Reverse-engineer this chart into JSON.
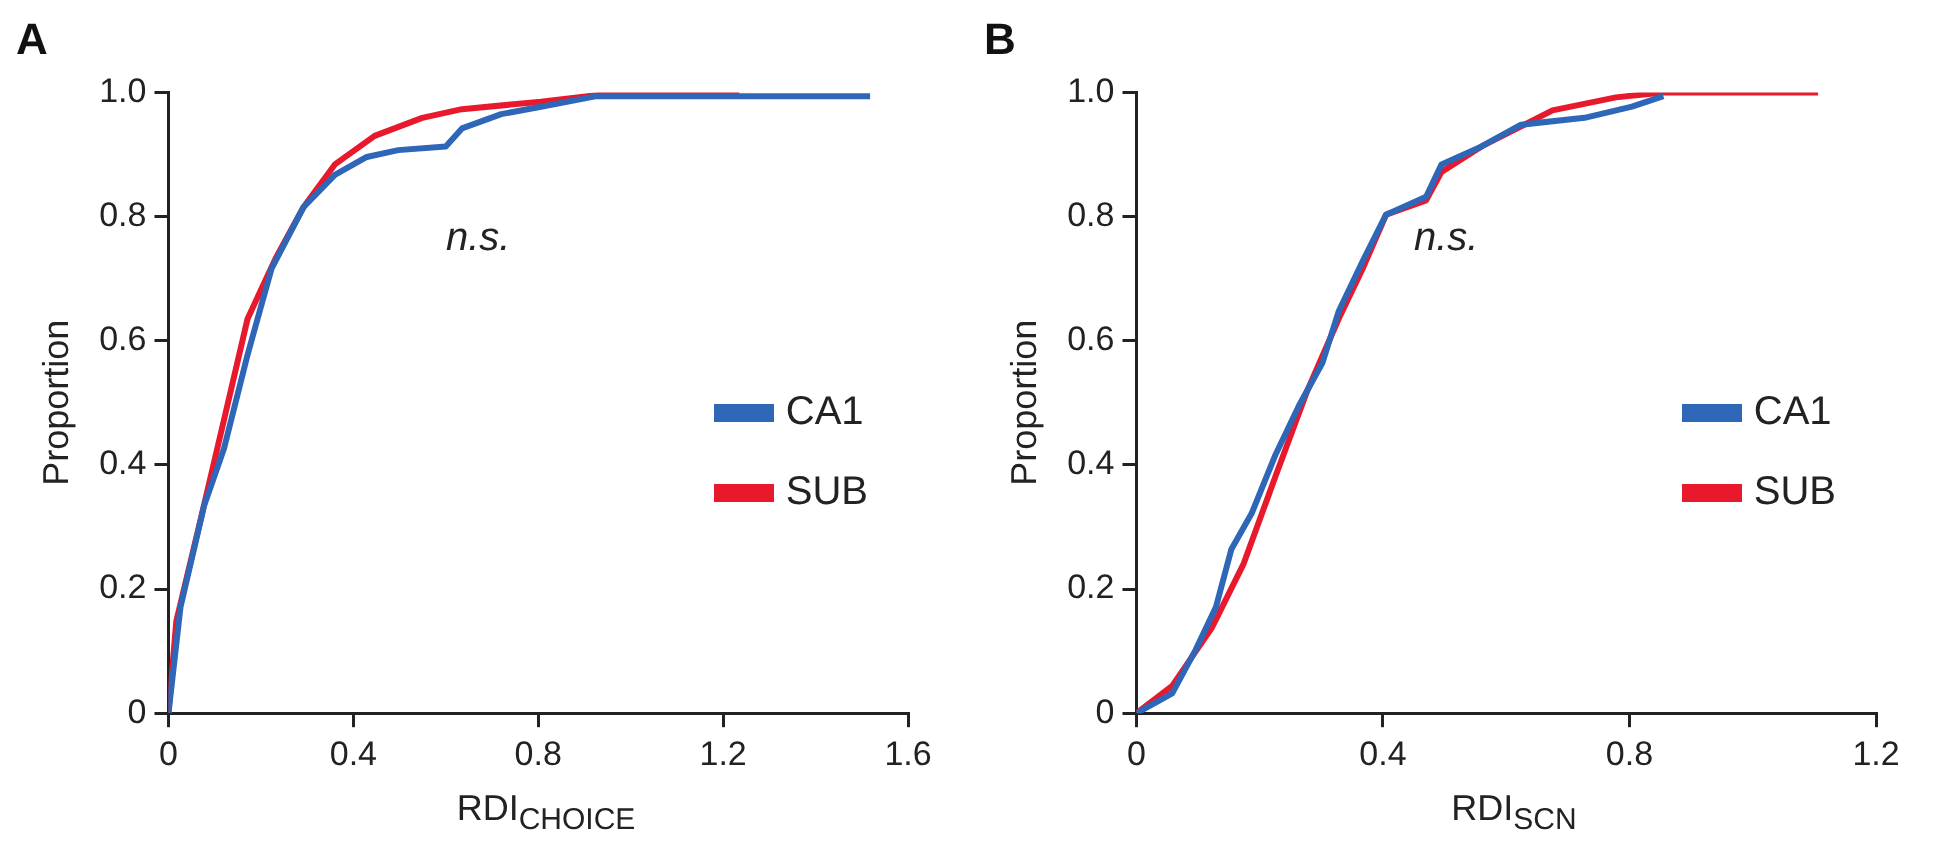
{
  "chart_data": [
    {
      "type": "line",
      "title": "A",
      "xlabel": "RDI$_{CHOICE}$",
      "ylabel": "Proportion",
      "xlim": [
        0,
        1.6
      ],
      "xticks": [
        0,
        0.4,
        0.8,
        1.2,
        1.6
      ],
      "ylim": [
        0,
        1
      ],
      "yticks": [
        0,
        0.2,
        0.4,
        0.6,
        0.8,
        {
          "value": 1,
          "label": "1.0"
        }
      ],
      "grid": false,
      "legend": "right",
      "annotations": [
        "n.s."
      ],
      "marker": "none",
      "series": [
        {
          "name": "CA1",
          "color": "#2e66b8",
          "x": [
            0,
            0.026,
            0.077,
            0.12,
            0.171,
            0.223,
            0.292,
            0.36,
            0.429,
            0.497,
            0.6,
            0.635,
            0.72,
            0.806,
            0.926,
            1.518
          ],
          "values": [
            0,
            0.171,
            0.334,
            0.426,
            0.577,
            0.716,
            0.815,
            0.867,
            0.896,
            0.907,
            0.913,
            0.942,
            0.965,
            0.977,
            0.994,
            0.994
          ]
        },
        {
          "name": "SUB",
          "color": "#e8192c",
          "x": [
            0,
            0.017,
            0.069,
            0.12,
            0.171,
            0.232,
            0.292,
            0.36,
            0.446,
            0.549,
            0.635,
            0.806,
            0.943,
            1.235
          ],
          "values": [
            0,
            0.148,
            0.31,
            0.472,
            0.635,
            0.733,
            0.815,
            0.884,
            0.93,
            0.959,
            0.973,
            0.985,
            0.997,
            1.0
          ]
        }
      ]
    },
    {
      "type": "line",
      "title": "B",
      "xlabel": "RDI$_{SCN}$",
      "ylabel": "Proportion",
      "xlim": [
        0,
        1.2
      ],
      "xticks": [
        0,
        0.4,
        0.8,
        1.2
      ],
      "ylim": [
        0,
        1
      ],
      "yticks": [
        0,
        0.2,
        0.4,
        0.6,
        0.8,
        {
          "value": 1,
          "label": "1.0"
        }
      ],
      "grid": false,
      "legend": "right",
      "annotations": [
        "n.s."
      ],
      "marker": "none",
      "series": [
        {
          "name": "CA1",
          "color": "#2e66b8",
          "x": [
            0,
            0.058,
            0.096,
            0.129,
            0.154,
            0.187,
            0.225,
            0.264,
            0.302,
            0.328,
            0.367,
            0.405,
            0.47,
            0.495,
            0.56,
            0.624,
            0.727,
            0.804,
            0.855
          ],
          "values": [
            0,
            0.032,
            0.102,
            0.171,
            0.264,
            0.322,
            0.415,
            0.496,
            0.565,
            0.647,
            0.728,
            0.803,
            0.832,
            0.884,
            0.913,
            0.948,
            0.959,
            0.977,
            0.994
          ]
        },
        {
          "name": "SUB",
          "color": "#e8192c",
          "x": [
            0,
            0.058,
            0.122,
            0.174,
            0.225,
            0.277,
            0.328,
            0.367,
            0.405,
            0.47,
            0.495,
            0.56,
            0.675,
            0.778,
            0.855,
            1.106
          ],
          "values": [
            0,
            0.044,
            0.137,
            0.241,
            0.38,
            0.519,
            0.635,
            0.716,
            0.803,
            0.826,
            0.872,
            0.913,
            0.971,
            0.992,
            1.0,
            1.0
          ]
        }
      ]
    }
  ]
}
